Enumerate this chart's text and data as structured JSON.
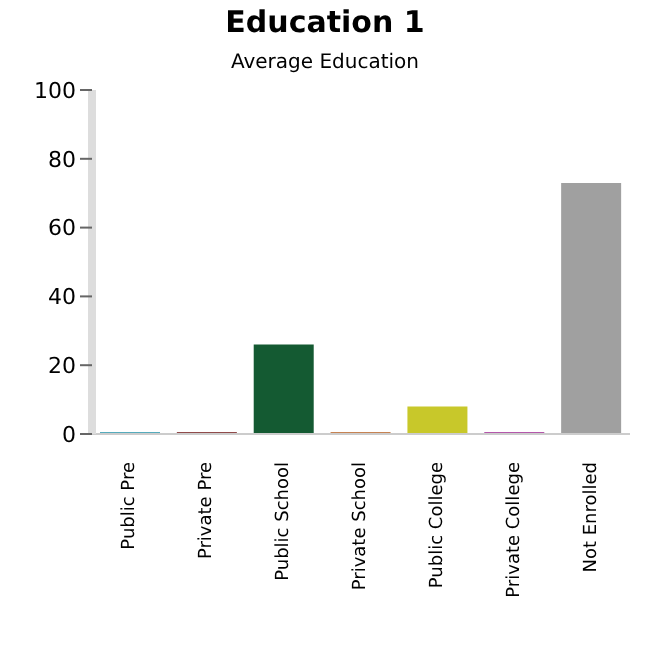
{
  "chart_data": {
    "type": "bar",
    "title": "Education 1",
    "subtitle": "Average Education",
    "categories": [
      "Public Pre",
      "Private Pre",
      "Public School",
      "Private School",
      "Public College",
      "Private College",
      "Not Enrolled"
    ],
    "values": [
      0.5,
      0.5,
      26,
      0.5,
      8,
      0.5,
      73
    ],
    "colors": [
      "#1e8fa6",
      "#6b0f0f",
      "#145a32",
      "#b35a1a",
      "#c8c82a",
      "#9b1f8f",
      "#a0a0a0"
    ],
    "ylim": [
      0,
      100
    ],
    "yticks": [
      0,
      20,
      40,
      60,
      80,
      100
    ],
    "grid": false,
    "legend": false
  }
}
